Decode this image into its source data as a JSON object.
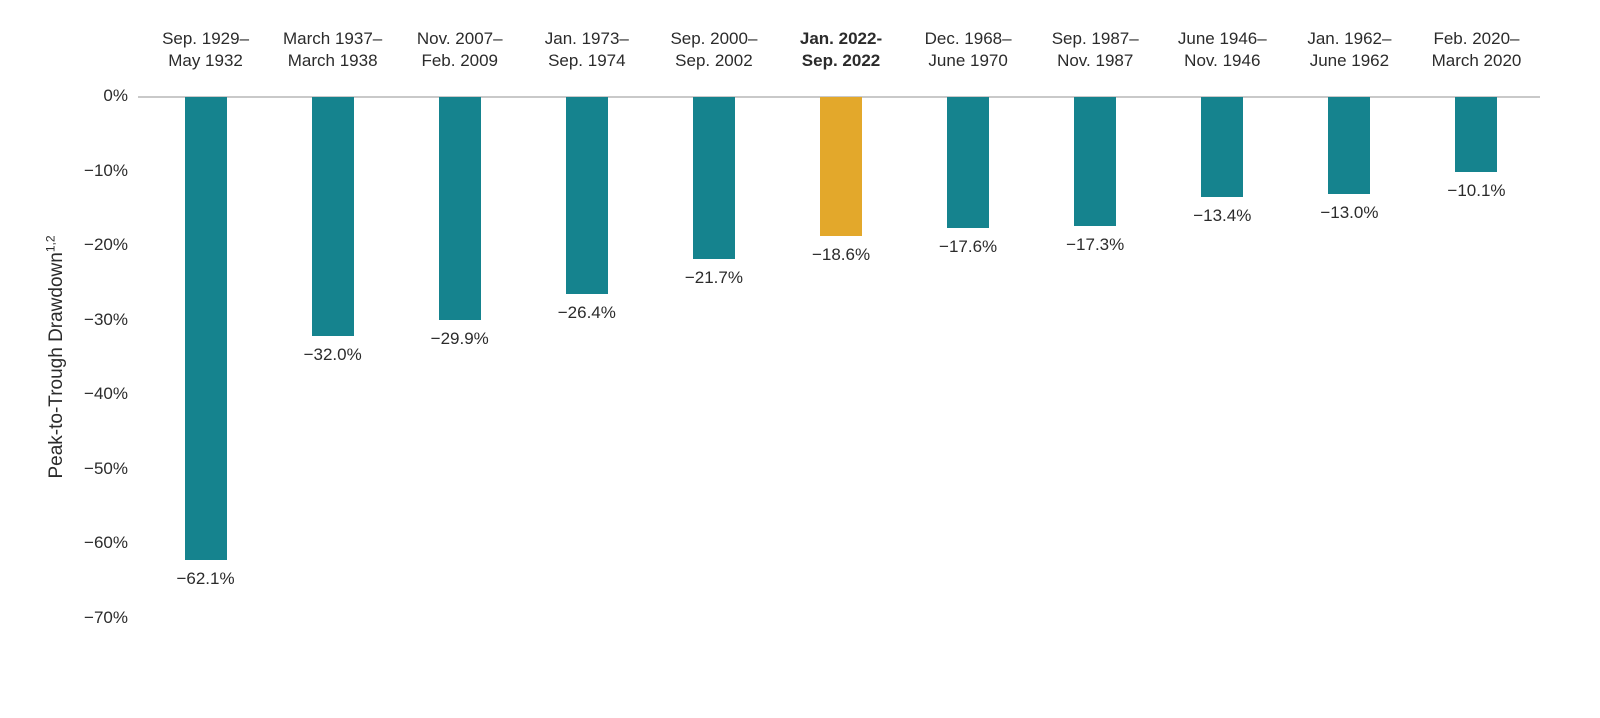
{
  "chart_data": {
    "type": "bar",
    "title": "",
    "xlabel": "",
    "ylabel": "Peak-to-Trough Drawdown",
    "ylabel_superscript": "1,2",
    "ylim": [
      0,
      -70
    ],
    "yticks": [
      0,
      -10,
      -20,
      -30,
      -40,
      -50,
      -60,
      -70
    ],
    "ytick_labels": [
      "0%",
      "−10%",
      "−20%",
      "−30%",
      "−40%",
      "−50%",
      "−60%",
      "−70%"
    ],
    "grid": false,
    "legend": "none",
    "bar_orientation": "vertical-negative",
    "colors": {
      "bar": "#15838E",
      "highlight_bar": "#E3A82B",
      "axis_line": "#C9C9C9",
      "text": "#2B2B2B"
    },
    "categories": [
      "Sep. 1929–May 1932",
      "March 1937–March 1938",
      "Nov. 2007–Feb. 2009",
      "Jan. 1973–Sep. 1974",
      "Sep. 2000–Sep. 2002",
      "Jan. 2022-Sep. 2022",
      "Dec. 1968–June 1970",
      "Sep. 1987–Nov. 1987",
      "June 1946–Nov. 1946",
      "Jan. 1962–June 1962",
      "Feb. 2020–March 2020"
    ],
    "values": [
      -62.1,
      -32.0,
      -29.9,
      -26.4,
      -21.7,
      -18.6,
      -17.6,
      -17.3,
      -13.4,
      -13.0,
      -10.1
    ],
    "bars": [
      {
        "period_line1": "Sep. 1929–",
        "period_line2": "May 1932",
        "value": -62.1,
        "value_label": "−62.1%",
        "highlight": false
      },
      {
        "period_line1": "March 1937–",
        "period_line2": "March 1938",
        "value": -32.0,
        "value_label": "−32.0%",
        "highlight": false
      },
      {
        "period_line1": "Nov. 2007–",
        "period_line2": "Feb. 2009",
        "value": -29.9,
        "value_label": "−29.9%",
        "highlight": false
      },
      {
        "period_line1": "Jan. 1973–",
        "period_line2": "Sep. 1974",
        "value": -26.4,
        "value_label": "−26.4%",
        "highlight": false
      },
      {
        "period_line1": "Sep. 2000–",
        "period_line2": "Sep. 2002",
        "value": -21.7,
        "value_label": "−21.7%",
        "highlight": false
      },
      {
        "period_line1": "Jan. 2022-",
        "period_line2": "Sep. 2022",
        "value": -18.6,
        "value_label": "−18.6%",
        "highlight": true
      },
      {
        "period_line1": "Dec. 1968–",
        "period_line2": "June 1970",
        "value": -17.6,
        "value_label": "−17.6%",
        "highlight": false
      },
      {
        "period_line1": "Sep. 1987–",
        "period_line2": "Nov. 1987",
        "value": -17.3,
        "value_label": "−17.3%",
        "highlight": false
      },
      {
        "period_line1": "June 1946–",
        "period_line2": "Nov. 1946",
        "value": -13.4,
        "value_label": "−13.4%",
        "highlight": false
      },
      {
        "period_line1": "Jan. 1962–",
        "period_line2": "June 1962",
        "value": -13.0,
        "value_label": "−13.0%",
        "highlight": false
      },
      {
        "period_line1": "Feb. 2020–",
        "period_line2": "March 2020",
        "value": -10.1,
        "value_label": "−10.1%",
        "highlight": false
      }
    ]
  }
}
